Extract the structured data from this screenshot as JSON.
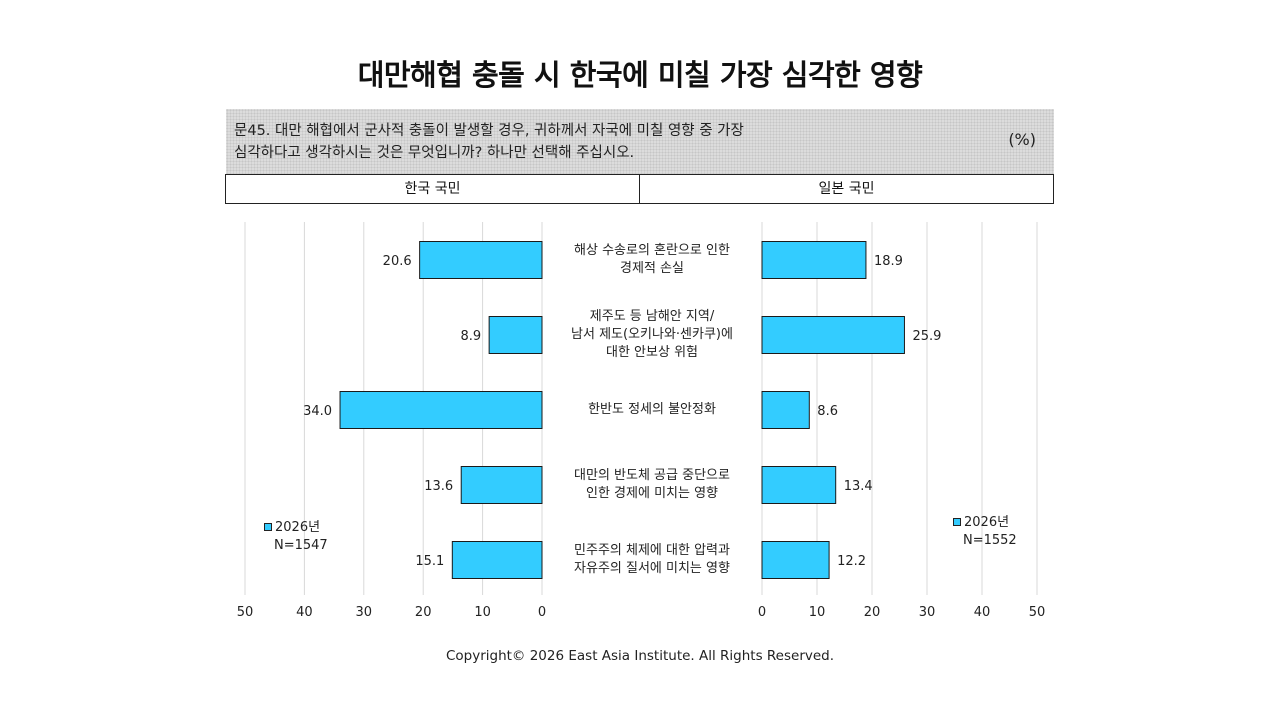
{
  "title": "대만해협 충돌 시 한국에 미칠 가장 심각한 영향",
  "question": {
    "line1": "문45. 대만 해협에서 군사적 충돌이 발생할 경우, 귀하께서 자국에 미칠 영향 중 가장",
    "line2": "심각하다고 생각하시는 것은 무엇입니까? 하나만 선택해 주십시오.",
    "unit": "(%)"
  },
  "headers": {
    "left": "한국 국민",
    "right": "일본 국민"
  },
  "legend": {
    "left": {
      "series": "2026년",
      "n": "N=1547"
    },
    "right": {
      "series": "2026년",
      "n": "N=1552"
    }
  },
  "copyright": "Copyright© 2026 East Asia Institute. All Rights Reserved.",
  "colors": {
    "bar": "#33ccff",
    "bar_stroke": "#1a1a1a",
    "grid": "#d9d9d9"
  },
  "chart_data": [
    {
      "type": "bar",
      "orientation": "horizontal",
      "panel": "한국 국민",
      "categories": [
        "해상 수송로의 혼란으로 인한\n경제적 손실",
        "제주도 등 남해안 지역/\n남서 제도(오키나와·센카쿠)에\n대한 안보상 위험",
        "한반도 정세의 불안정화",
        "대만의 반도체 공급 중단으로\n인한 경제에 미치는 영향",
        "민주주의 체제에 대한 압력과\n자유주의 질서에 미치는 영향"
      ],
      "series": [
        {
          "name": "2026년",
          "values": [
            20.6,
            8.9,
            34.0,
            13.6,
            15.1
          ]
        }
      ],
      "xlim": [
        50,
        0
      ],
      "ticks": [
        "50",
        "40",
        "30",
        "20",
        "10",
        "0"
      ],
      "grid": true
    },
    {
      "type": "bar",
      "orientation": "horizontal",
      "panel": "일본 국민",
      "categories": [
        "해상 수송로의 혼란으로 인한\n경제적 손실",
        "제주도 등 남해안 지역/\n남서 제도(오키나와·센카쿠)에\n대한 안보상 위험",
        "한반도 정세의 불안정화",
        "대만의 반도체 공급 중단으로\n인한 경제에 미치는 영향",
        "민주주의 체제에 대한 압력과\n자유주의 질서에 미치는 영향"
      ],
      "series": [
        {
          "name": "2026년",
          "values": [
            18.9,
            25.9,
            8.6,
            13.4,
            12.2
          ]
        }
      ],
      "xlim": [
        0,
        50
      ],
      "ticks": [
        "0",
        "10",
        "20",
        "30",
        "40",
        "50"
      ],
      "grid": true
    }
  ]
}
